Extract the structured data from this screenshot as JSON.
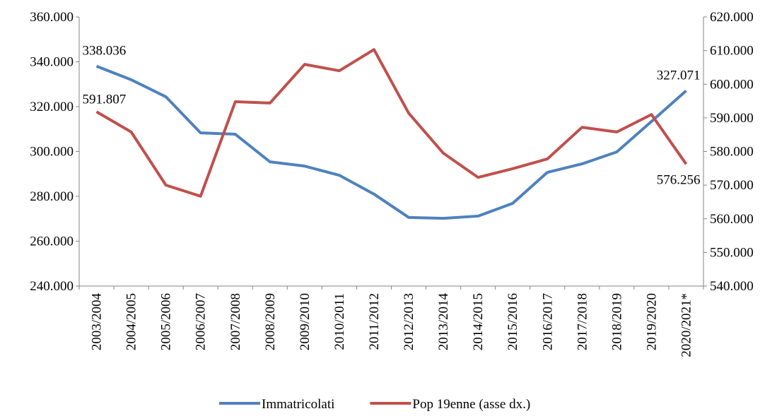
{
  "chart_data": {
    "type": "line",
    "categories": [
      "2003/2004",
      "2004/2005",
      "2005/2006",
      "2006/2007",
      "2007/2008",
      "2008/2009",
      "2009/2010",
      "2010/2011",
      "2011/2012",
      "2012/2013",
      "2013/2014",
      "2014/2015",
      "2015/2016",
      "2016/2017",
      "2017/2018",
      "2018/2019",
      "2019/2020",
      "2020/2021*"
    ],
    "series": [
      {
        "name": "Immatricolati",
        "color": "#4f81bd",
        "axis": "y",
        "values": [
          338036,
          332000,
          324400,
          308300,
          307700,
          295400,
          293500,
          289400,
          281000,
          270600,
          270200,
          271200,
          276900,
          290700,
          294500,
          299800,
          313400,
          327071
        ],
        "value_labels": [
          "338.036",
          null,
          null,
          null,
          null,
          null,
          null,
          null,
          null,
          null,
          null,
          null,
          null,
          null,
          null,
          null,
          null,
          "327.071"
        ]
      },
      {
        "name": "Pop 19enne (asse dx.)",
        "color": "#c0504d",
        "axis": "y2",
        "values": [
          591807,
          585800,
          570000,
          566700,
          594800,
          594400,
          605900,
          604000,
          610300,
          591400,
          579500,
          572300,
          574900,
          577800,
          587200,
          585800,
          591000,
          576256
        ],
        "value_labels": [
          "591.807",
          null,
          null,
          null,
          null,
          null,
          null,
          null,
          null,
          null,
          null,
          null,
          null,
          null,
          null,
          null,
          null,
          "576.256"
        ]
      }
    ],
    "ylim": [
      240000,
      360000
    ],
    "yticks": [
      {
        "value": 240000,
        "label": "240.000"
      },
      {
        "value": 260000,
        "label": "260.000"
      },
      {
        "value": 280000,
        "label": "280.000"
      },
      {
        "value": 300000,
        "label": "300.000"
      },
      {
        "value": 320000,
        "label": "320.000"
      },
      {
        "value": 340000,
        "label": "340.000"
      },
      {
        "value": 360000,
        "label": "360.000"
      }
    ],
    "y2lim": [
      540000,
      620000
    ],
    "y2ticks": [
      {
        "value": 540000,
        "label": "540.000"
      },
      {
        "value": 550000,
        "label": "550.000"
      },
      {
        "value": 560000,
        "label": "560.000"
      },
      {
        "value": 570000,
        "label": "570.000"
      },
      {
        "value": 580000,
        "label": "580.000"
      },
      {
        "value": 590000,
        "label": "590.000"
      },
      {
        "value": 600000,
        "label": "600.000"
      },
      {
        "value": 610000,
        "label": "610.000"
      },
      {
        "value": 620000,
        "label": "620.000"
      }
    ],
    "grid": false,
    "legend": "bottom"
  }
}
